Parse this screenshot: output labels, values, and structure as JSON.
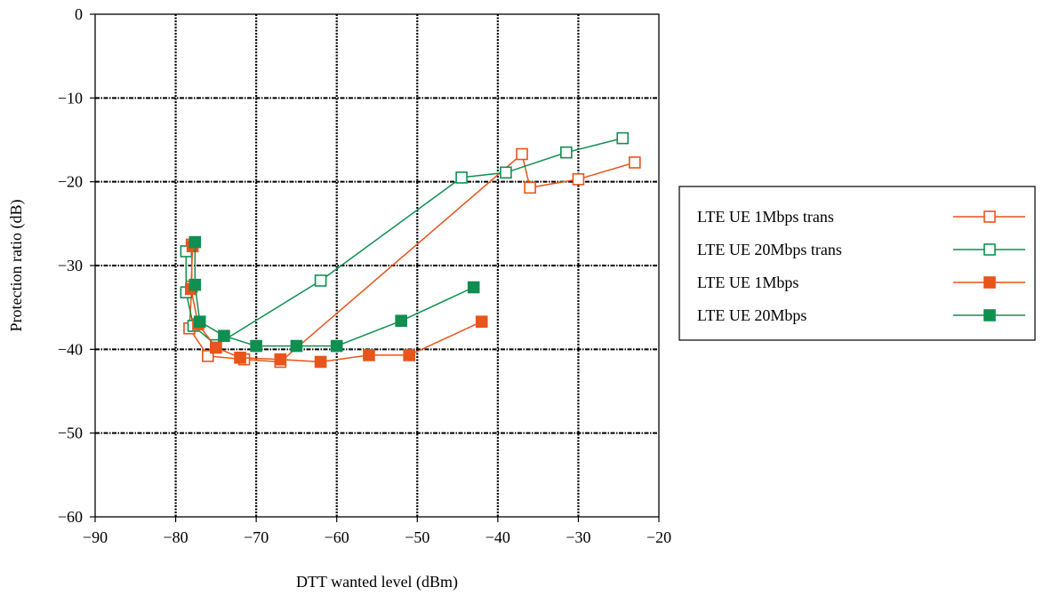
{
  "chart_data": {
    "type": "line",
    "title": "",
    "xlabel": "DTT wanted level (dBm)",
    "ylabel": "Protection ratio (dB)",
    "xlim": [
      -90,
      -20
    ],
    "ylim": [
      -60,
      0
    ],
    "x_ticks": [
      -90,
      -80,
      -70,
      -60,
      -50,
      -40,
      -30,
      -20
    ],
    "y_ticks": [
      0,
      -10,
      -20,
      -30,
      -40,
      -50,
      -60
    ],
    "x_tick_labels": [
      "−90",
      "−80",
      "−70",
      "−60",
      "−50",
      "−40",
      "−30",
      "−20"
    ],
    "y_tick_labels": [
      "0",
      "−10",
      "−20",
      "−30",
      "−40",
      "−50",
      "−60"
    ],
    "grid": "dashed major gridlines",
    "legend_position": "right",
    "series": [
      {
        "name": "LTE UE 1Mbps trans",
        "color": "#e8541a",
        "marker": "open-square",
        "points": [
          [
            -78,
            -27.5
          ],
          [
            -78,
            -32.5
          ],
          [
            -78.3,
            -37.5
          ],
          [
            -76,
            -40.8
          ],
          [
            -71.5,
            -41.2
          ],
          [
            -67,
            -41.5
          ],
          [
            -37,
            -16.7
          ],
          [
            -36,
            -20.7
          ],
          [
            -30,
            -19.7
          ],
          [
            -23,
            -17.7
          ]
        ]
      },
      {
        "name": "LTE UE 20Mbps trans",
        "color": "#0f8f50",
        "marker": "open-square",
        "points": [
          [
            -78.7,
            -28.3
          ],
          [
            -78.7,
            -33.2
          ],
          [
            -77.8,
            -37.2
          ],
          [
            -75,
            -39.5
          ],
          [
            -62,
            -31.8
          ],
          [
            -44.5,
            -19.5
          ],
          [
            -39,
            -18.9
          ],
          [
            -31.5,
            -16.5
          ],
          [
            -24.5,
            -14.8
          ]
        ]
      },
      {
        "name": "LTE UE 1Mbps",
        "color": "#e8541a",
        "marker": "filled-square",
        "points": [
          [
            -77.9,
            -27.7
          ],
          [
            -78.1,
            -32.8
          ],
          [
            -77.2,
            -37
          ],
          [
            -75,
            -39.8
          ],
          [
            -72,
            -41
          ],
          [
            -67,
            -41.2
          ],
          [
            -62,
            -41.5
          ],
          [
            -56,
            -40.7
          ],
          [
            -51,
            -40.7
          ],
          [
            -42,
            -36.7
          ]
        ]
      },
      {
        "name": "LTE UE 20Mbps",
        "color": "#0f8f50",
        "marker": "filled-square",
        "points": [
          [
            -77.6,
            -27.2
          ],
          [
            -77.6,
            -32.3
          ],
          [
            -77,
            -36.7
          ],
          [
            -74,
            -38.4
          ],
          [
            -70,
            -39.6
          ],
          [
            -65,
            -39.6
          ],
          [
            -60,
            -39.6
          ],
          [
            -52,
            -36.6
          ],
          [
            -43,
            -32.6
          ]
        ]
      }
    ]
  }
}
